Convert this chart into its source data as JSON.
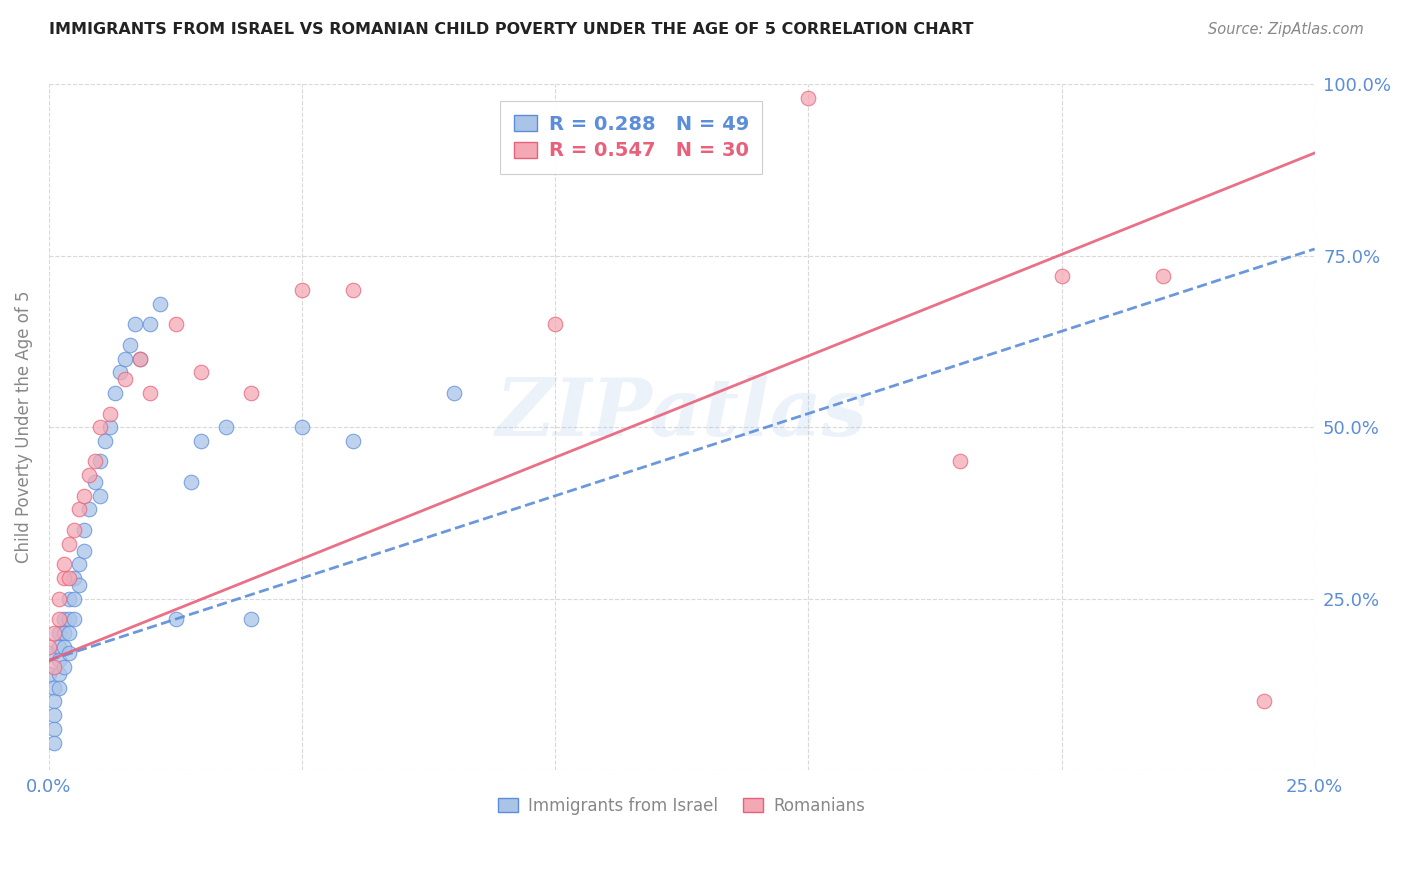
{
  "title": "IMMIGRANTS FROM ISRAEL VS ROMANIAN CHILD POVERTY UNDER THE AGE OF 5 CORRELATION CHART",
  "source": "Source: ZipAtlas.com",
  "ylabel": "Child Poverty Under the Age of 5",
  "legend_text_israel": "R = 0.288   N = 49",
  "legend_text_romanian": "R = 0.547   N = 30",
  "legend_label_israel": "Immigrants from Israel",
  "legend_label_romanian": "Romanians",
  "watermark": "ZIPatlas",
  "israel_color": "#aac4e8",
  "romanian_color": "#f4a8b4",
  "israel_edge_color": "#5b8dd9",
  "romanian_edge_color": "#e8607a",
  "line_israel_color": "#5b8dd9",
  "line_romanian_color": "#e8607a",
  "israel_x": [
    0.0,
    0.0,
    0.001,
    0.001,
    0.001,
    0.001,
    0.001,
    0.002,
    0.002,
    0.002,
    0.002,
    0.002,
    0.003,
    0.003,
    0.003,
    0.003,
    0.004,
    0.004,
    0.004,
    0.004,
    0.005,
    0.005,
    0.005,
    0.006,
    0.006,
    0.007,
    0.007,
    0.008,
    0.009,
    0.01,
    0.01,
    0.011,
    0.012,
    0.013,
    0.014,
    0.015,
    0.016,
    0.017,
    0.018,
    0.02,
    0.022,
    0.025,
    0.028,
    0.03,
    0.035,
    0.04,
    0.05,
    0.06,
    0.08
  ],
  "israel_y": [
    0.17,
    0.14,
    0.12,
    0.1,
    0.08,
    0.06,
    0.04,
    0.2,
    0.18,
    0.16,
    0.14,
    0.12,
    0.22,
    0.2,
    0.18,
    0.15,
    0.25,
    0.22,
    0.2,
    0.17,
    0.28,
    0.25,
    0.22,
    0.3,
    0.27,
    0.35,
    0.32,
    0.38,
    0.42,
    0.45,
    0.4,
    0.48,
    0.5,
    0.55,
    0.58,
    0.6,
    0.62,
    0.65,
    0.6,
    0.65,
    0.68,
    0.22,
    0.42,
    0.48,
    0.5,
    0.22,
    0.5,
    0.48,
    0.55
  ],
  "romanian_x": [
    0.0,
    0.001,
    0.001,
    0.002,
    0.002,
    0.003,
    0.003,
    0.004,
    0.004,
    0.005,
    0.006,
    0.007,
    0.008,
    0.009,
    0.01,
    0.012,
    0.015,
    0.018,
    0.02,
    0.025,
    0.03,
    0.04,
    0.05,
    0.06,
    0.1,
    0.15,
    0.18,
    0.2,
    0.22,
    0.24
  ],
  "romanian_y": [
    0.18,
    0.2,
    0.15,
    0.22,
    0.25,
    0.28,
    0.3,
    0.33,
    0.28,
    0.35,
    0.38,
    0.4,
    0.43,
    0.45,
    0.5,
    0.52,
    0.57,
    0.6,
    0.55,
    0.65,
    0.58,
    0.55,
    0.7,
    0.7,
    0.65,
    0.98,
    0.45,
    0.72,
    0.72,
    0.1
  ],
  "xmin": 0.0,
  "xmax": 0.25,
  "ymin": 0.0,
  "ymax": 1.0,
  "israel_line_x0": 0.0,
  "israel_line_y0": 0.16,
  "israel_line_x1": 0.25,
  "israel_line_y1": 0.76,
  "romanian_line_x0": 0.0,
  "romanian_line_y0": 0.16,
  "romanian_line_x1": 0.25,
  "romanian_line_y1": 0.9
}
